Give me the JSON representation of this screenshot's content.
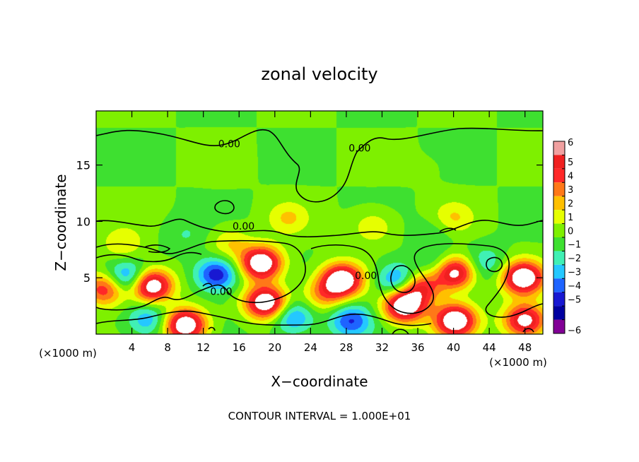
{
  "chart_data": {
    "type": "heatmap",
    "title": "zonal velocity",
    "xlabel": "X−coordinate",
    "ylabel": "Z−coordinate",
    "x_unit_left": "(×1000 m)",
    "x_unit_right": "(×1000 m)",
    "footer": "CONTOUR INTERVAL = 1.000E+01",
    "xlim": [
      0,
      50
    ],
    "ylim": [
      0,
      19.8
    ],
    "x_ticks": [
      4,
      8,
      12,
      16,
      20,
      24,
      28,
      32,
      36,
      40,
      44,
      48
    ],
    "y_ticks": [
      5,
      10,
      15
    ],
    "colorbar": {
      "levels": [
        6,
        5,
        4,
        3,
        2,
        1,
        0,
        -1,
        -2,
        -3,
        -4,
        -5,
        -6
      ],
      "colors": [
        "#f0a0a0",
        "#f02020",
        "#ff2828",
        "#ff7818",
        "#ffc000",
        "#e6ff00",
        "#7ef000",
        "#3ee030",
        "#40f0b4",
        "#24c8ff",
        "#1e64ff",
        "#1818d2",
        "#0000a0",
        "#820096"
      ]
    },
    "contour_labels": [
      {
        "text": "0.00",
        "x": 14.9,
        "y": 16.9
      },
      {
        "text": "0.00",
        "x": 29.5,
        "y": 16.5
      },
      {
        "text": "0.00",
        "x": 16.5,
        "y": 9.6
      },
      {
        "text": "0.00",
        "x": 14.0,
        "y": 3.8
      },
      {
        "text": "0.00",
        "x": 30.2,
        "y": 5.2
      }
    ],
    "features": [
      {
        "x": 6.2,
        "y": 4.3,
        "value": 8
      },
      {
        "x": 13.5,
        "y": 5.3,
        "value": -5
      },
      {
        "x": 18.5,
        "y": 6.3,
        "value": 8
      },
      {
        "x": 19.0,
        "y": 2.8,
        "value": 8
      },
      {
        "x": 10.0,
        "y": 0.8,
        "value": 8
      },
      {
        "x": 3.5,
        "y": 5.0,
        "value": -4
      },
      {
        "x": 5.8,
        "y": 1.3,
        "value": -3
      },
      {
        "x": 27.5,
        "y": 4.8,
        "value": 8
      },
      {
        "x": 25.5,
        "y": 3.5,
        "value": 3
      },
      {
        "x": 33.8,
        "y": 4.8,
        "value": -4
      },
      {
        "x": 34.5,
        "y": 2.5,
        "value": 8
      },
      {
        "x": 36.3,
        "y": 4.2,
        "value": 5
      },
      {
        "x": 40.0,
        "y": 5.5,
        "value": 8
      },
      {
        "x": 40.2,
        "y": 1.2,
        "value": 8
      },
      {
        "x": 43.5,
        "y": 6.3,
        "value": -2
      },
      {
        "x": 47.8,
        "y": 5.0,
        "value": 8
      },
      {
        "x": 48.0,
        "y": 1.2,
        "value": 7
      },
      {
        "x": 38.5,
        "y": 6.0,
        "value": -2.5
      },
      {
        "x": 22.0,
        "y": 1.5,
        "value": -3.5
      },
      {
        "x": 28.5,
        "y": 1.2,
        "value": -4
      },
      {
        "x": 1.0,
        "y": 4.0,
        "value": 5
      },
      {
        "x": 15.0,
        "y": 8.0,
        "value": 2
      },
      {
        "x": 21.5,
        "y": 10.3,
        "value": 2
      },
      {
        "x": 31.0,
        "y": 9.5,
        "value": 2
      },
      {
        "x": 40.0,
        "y": 10.3,
        "value": 2
      },
      {
        "x": 3.0,
        "y": 8.0,
        "value": 2
      },
      {
        "x": 38.0,
        "y": 9.0,
        "value": -1
      },
      {
        "x": 10.0,
        "y": 8.8,
        "value": -1
      },
      {
        "x": 14.0,
        "y": 15.0,
        "value": 0.4
      },
      {
        "x": 38.0,
        "y": 15.0,
        "value": 0.2
      }
    ],
    "grid": false
  }
}
